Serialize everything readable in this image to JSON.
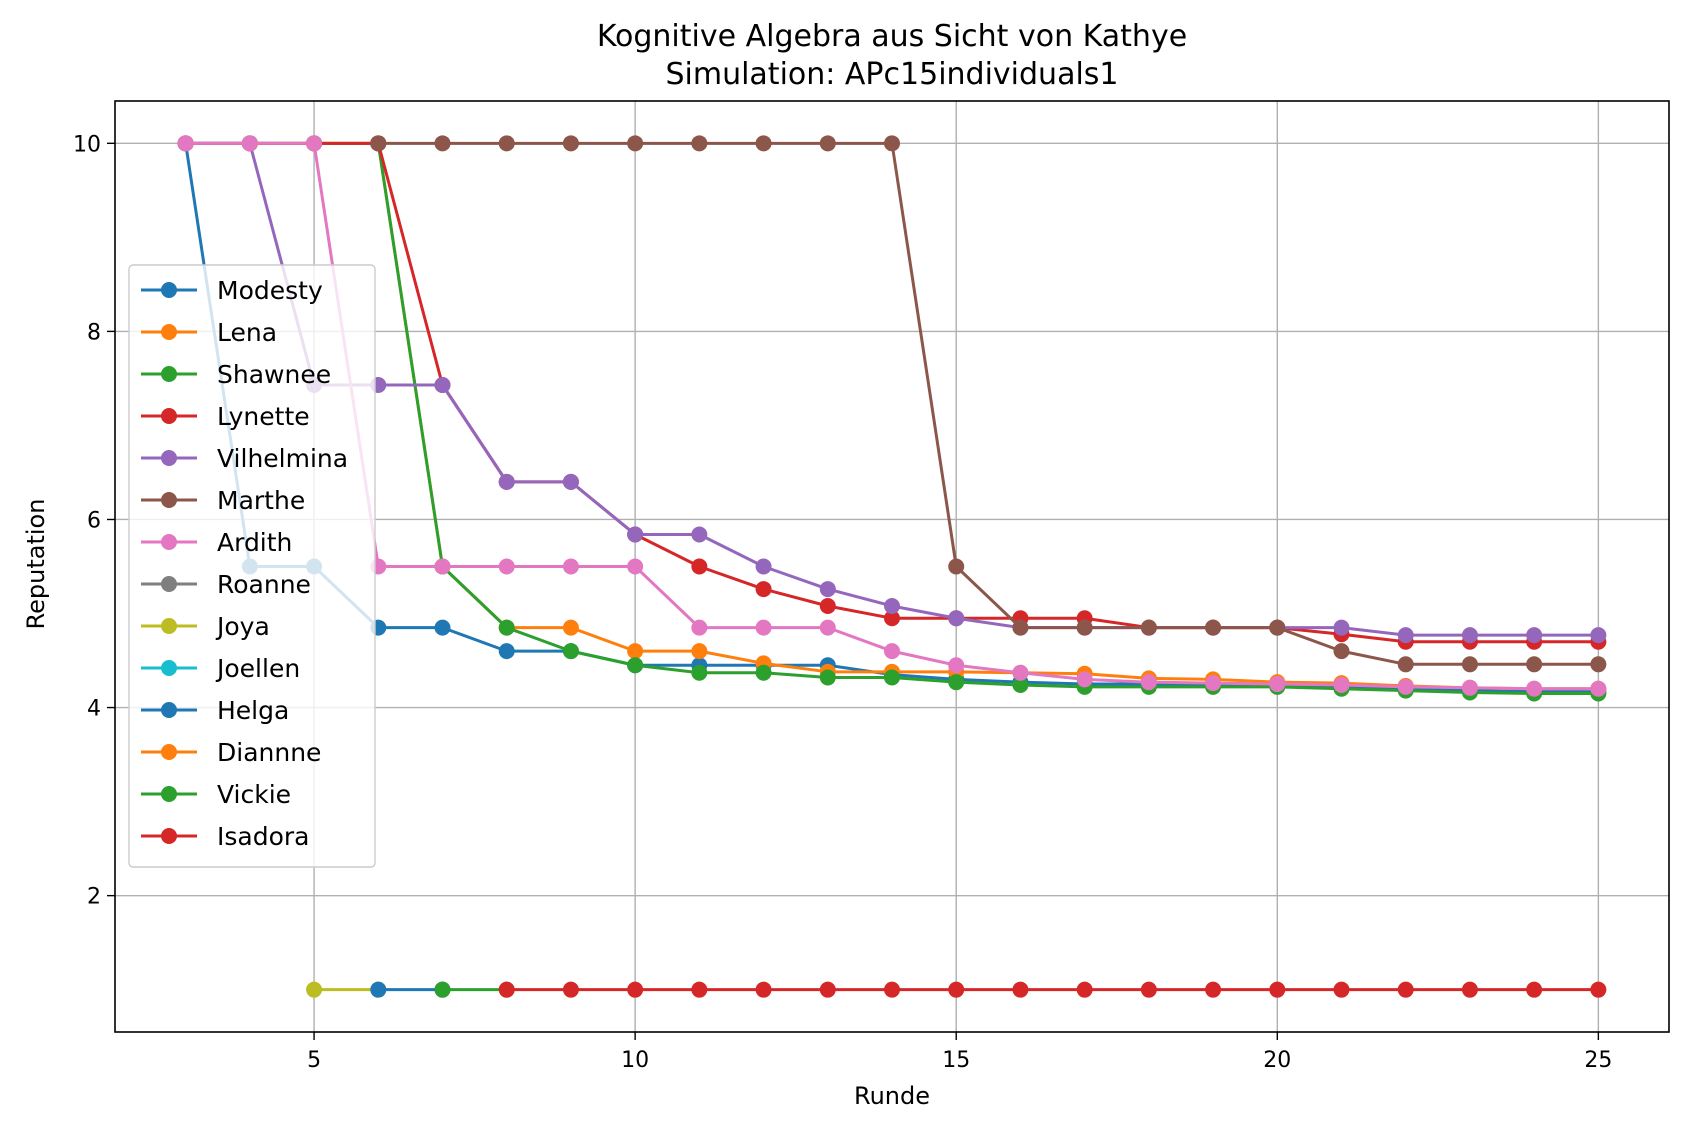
{
  "chart_data": {
    "type": "line",
    "title": "Kognitive Algebra aus Sicht von Kathye",
    "subtitle": "Simulation: APc15individuals1",
    "xlabel": "Runde",
    "ylabel": "Reputation",
    "xlim": [
      1.9,
      26.1
    ],
    "ylim": [
      0.55,
      10.45
    ],
    "xticks": [
      5,
      10,
      15,
      20,
      25
    ],
    "yticks": [
      2,
      4,
      6,
      8,
      10
    ],
    "grid": true,
    "legend_position": "center-left",
    "series": [
      {
        "name": "Modesty",
        "color": "#1f77b4",
        "x": [
          3,
          4,
          5,
          6,
          7,
          8,
          9,
          10,
          11,
          12,
          13,
          14,
          15,
          16,
          17,
          18,
          19,
          20,
          21,
          22,
          23,
          24,
          25
        ],
        "y": [
          10,
          5.5,
          5.5,
          4.85,
          4.85,
          4.6,
          4.6,
          4.45,
          4.45,
          4.45,
          4.45,
          4.35,
          4.3,
          4.27,
          4.25,
          4.25,
          4.25,
          4.25,
          4.22,
          4.2,
          4.18,
          4.17,
          4.17
        ]
      },
      {
        "name": "Lena",
        "color": "#ff7f0e",
        "x": [
          3,
          4,
          5,
          6,
          7,
          8,
          9,
          10,
          11,
          12,
          13,
          14,
          15,
          16,
          17,
          18,
          19,
          20,
          21,
          22,
          23,
          24,
          25
        ],
        "y": [
          10,
          10,
          10,
          10,
          5.5,
          4.85,
          4.85,
          4.6,
          4.6,
          4.47,
          4.38,
          4.38,
          4.38,
          4.37,
          4.36,
          4.31,
          4.3,
          4.27,
          4.26,
          4.23,
          4.21,
          4.2,
          4.2
        ]
      },
      {
        "name": "Shawnee",
        "color": "#2ca02c",
        "x": [
          3,
          4,
          5,
          6,
          7,
          8,
          9,
          10,
          11,
          12,
          13,
          14,
          15,
          16,
          17,
          18,
          19,
          20,
          21,
          22,
          23,
          24,
          25
        ],
        "y": [
          10,
          10,
          10,
          10,
          5.5,
          4.85,
          4.6,
          4.45,
          4.37,
          4.37,
          4.32,
          4.32,
          4.27,
          4.24,
          4.22,
          4.22,
          4.22,
          4.22,
          4.2,
          4.18,
          4.16,
          4.15,
          4.15
        ]
      },
      {
        "name": "Lynette",
        "color": "#d62728",
        "x": [
          3,
          4,
          5,
          6,
          7,
          8,
          9,
          10,
          11,
          12,
          13,
          14,
          15,
          16,
          17,
          18,
          19,
          20,
          21,
          22,
          23,
          24,
          25
        ],
        "y": [
          10,
          10,
          10,
          10,
          7.43,
          6.4,
          6.4,
          5.84,
          5.5,
          5.26,
          5.08,
          4.95,
          4.95,
          4.95,
          4.95,
          4.85,
          4.85,
          4.85,
          4.78,
          4.7,
          4.7,
          4.7,
          4.7
        ]
      },
      {
        "name": "Vilhelmina",
        "color": "#9467bd",
        "x": [
          3,
          4,
          5,
          6,
          7,
          8,
          9,
          10,
          11,
          12,
          13,
          14,
          15,
          16,
          17,
          18,
          19,
          20,
          21,
          22,
          23,
          24,
          25
        ],
        "y": [
          10,
          10,
          7.43,
          7.43,
          7.43,
          6.4,
          6.4,
          5.84,
          5.84,
          5.5,
          5.26,
          5.08,
          4.95,
          4.85,
          4.85,
          4.85,
          4.85,
          4.85,
          4.85,
          4.77,
          4.77,
          4.77,
          4.77
        ]
      },
      {
        "name": "Marthe",
        "color": "#8c564b",
        "x": [
          6,
          7,
          8,
          9,
          10,
          11,
          12,
          13,
          14,
          15,
          16,
          17,
          18,
          19,
          20,
          21,
          22,
          23,
          24,
          25
        ],
        "y": [
          10,
          10,
          10,
          10,
          10,
          10,
          10,
          10,
          10,
          5.5,
          4.85,
          4.85,
          4.85,
          4.85,
          4.85,
          4.6,
          4.46,
          4.46,
          4.46,
          4.46
        ]
      },
      {
        "name": "Ardith",
        "color": "#e377c2",
        "x": [
          3,
          4,
          5,
          6,
          7,
          8,
          9,
          10,
          11,
          12,
          13,
          14,
          15,
          16,
          17,
          18,
          19,
          20,
          21,
          22,
          23,
          24,
          25
        ],
        "y": [
          10,
          10,
          10,
          5.5,
          5.5,
          5.5,
          5.5,
          5.5,
          4.85,
          4.85,
          4.85,
          4.6,
          4.45,
          4.37,
          4.3,
          4.27,
          4.26,
          4.25,
          4.24,
          4.22,
          4.21,
          4.2,
          4.2
        ]
      },
      {
        "name": "Roanne",
        "color": "#7f7f7f",
        "x": [],
        "y": []
      },
      {
        "name": "Joya",
        "color": "#bcbd22",
        "x": [
          5,
          6
        ],
        "y": [
          1,
          1
        ]
      },
      {
        "name": "Joellen",
        "color": "#17becf",
        "x": [],
        "y": []
      },
      {
        "name": "Helga",
        "color": "#1f77b4",
        "x": [
          6,
          7
        ],
        "y": [
          1,
          1
        ]
      },
      {
        "name": "Diannne",
        "color": "#ff7f0e",
        "x": [],
        "y": []
      },
      {
        "name": "Vickie",
        "color": "#2ca02c",
        "x": [
          7,
          8
        ],
        "y": [
          1,
          1
        ]
      },
      {
        "name": "Isadora",
        "color": "#d62728",
        "x": [
          8,
          9,
          10,
          11,
          12,
          13,
          14,
          15,
          16,
          17,
          18,
          19,
          20,
          21,
          22,
          23,
          24,
          25
        ],
        "y": [
          1,
          1,
          1,
          1,
          1,
          1,
          1,
          1,
          1,
          1,
          1,
          1,
          1,
          1,
          1,
          1,
          1,
          1
        ]
      }
    ]
  }
}
